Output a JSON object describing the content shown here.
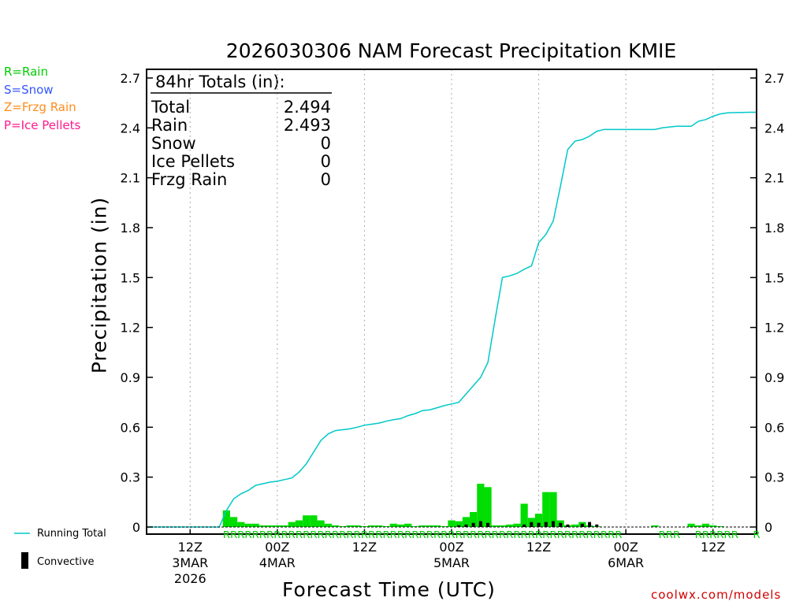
{
  "legend": [
    {
      "label": "R=Rain",
      "color": "#00cc00"
    },
    {
      "label": "S=Snow",
      "color": "#3355ff"
    },
    {
      "label": "Z=Frzg Rain",
      "color": "#ff8c1a"
    },
    {
      "label": "P=Ice Pellets",
      "color": "#ff1a8c"
    }
  ],
  "totals": {
    "heading": "84hr Totals (in):",
    "rows": [
      {
        "label": "Total",
        "value": "2.494"
      },
      {
        "label": "Rain",
        "value": "2.493"
      },
      {
        "label": "Snow",
        "value": "0"
      },
      {
        "label": "Ice Pellets",
        "value": "0"
      },
      {
        "label": "Frzg Rain",
        "value": "0"
      }
    ]
  },
  "bottom_legend": {
    "running_total": "Running Total",
    "convective": "Convective"
  },
  "credit": "coolwx.com/models",
  "colors": {
    "running_total": "#00c8c8",
    "precip_bar": "#00dd00",
    "convective_bar": "#000000"
  },
  "chart_data": {
    "type": "bar",
    "title": "2026030306 NAM Forecast Precipitation KMIE",
    "xlabel": "Forecast Time (UTC)",
    "ylabel": "Precipitation (in)",
    "ylim": [
      0,
      2.7
    ],
    "yticks": [
      0,
      0.3,
      0.6,
      0.9,
      1.2,
      1.5,
      1.8,
      2.1,
      2.4,
      2.7
    ],
    "ytick_labels": [
      "0",
      "0.3",
      "0.6",
      "0.9",
      "1.2",
      "1.5",
      "1.8",
      "2.1",
      "2.4",
      "2.7"
    ],
    "x_unit": "forecast hour",
    "xlim": [
      0,
      84
    ],
    "xticks": [
      {
        "hour": 6,
        "label": "12Z",
        "date": "3MAR",
        "year": "2026"
      },
      {
        "hour": 18,
        "label": "00Z",
        "date": "4MAR",
        "year": ""
      },
      {
        "hour": 30,
        "label": "12Z",
        "date": "",
        "year": ""
      },
      {
        "hour": 42,
        "label": "00Z",
        "date": "5MAR",
        "year": ""
      },
      {
        "hour": 54,
        "label": "12Z",
        "date": "",
        "year": ""
      },
      {
        "hour": 66,
        "label": "00Z",
        "date": "6MAR",
        "year": ""
      },
      {
        "hour": 78,
        "label": "12Z",
        "date": "",
        "year": ""
      }
    ],
    "grid": "dotted vertical at 00Z/12Z",
    "series": [
      {
        "name": "Precipitation per hour",
        "kind": "bar",
        "x": [
          11,
          12,
          13,
          14,
          15,
          16,
          17,
          18,
          19,
          20,
          21,
          22,
          23,
          24,
          25,
          26,
          27,
          28,
          29,
          30,
          31,
          32,
          33,
          34,
          35,
          36,
          37,
          38,
          39,
          40,
          41,
          42,
          43,
          44,
          45,
          46,
          47,
          48,
          49,
          50,
          51,
          52,
          53,
          54,
          55,
          56,
          57,
          58,
          59,
          60,
          61,
          62,
          63,
          64,
          65,
          66,
          67,
          68,
          69,
          70,
          71,
          72,
          73,
          74,
          75,
          76,
          77,
          78,
          79,
          80,
          81,
          82,
          83
        ],
        "values": [
          0.1,
          0.06,
          0.03,
          0.02,
          0.02,
          0.01,
          0.01,
          0.01,
          0.01,
          0.03,
          0.04,
          0.07,
          0.07,
          0.04,
          0.02,
          0.01,
          0.005,
          0.01,
          0.01,
          0.005,
          0.01,
          0.01,
          0.005,
          0.02,
          0.015,
          0.02,
          0.005,
          0.01,
          0.01,
          0.01,
          0.005,
          0.04,
          0.035,
          0.06,
          0.09,
          0.26,
          0.24,
          0.01,
          0.01,
          0.015,
          0.02,
          0.14,
          0.055,
          0.08,
          0.21,
          0.21,
          0.04,
          0.01,
          0.015,
          0.03,
          0.01,
          0.005,
          0,
          0,
          0,
          0,
          0,
          0,
          0,
          0.01,
          0,
          0,
          0,
          0,
          0.02,
          0.01,
          0.02,
          0.01,
          0.005,
          0,
          0,
          0,
          0
        ]
      },
      {
        "name": "Convective",
        "kind": "bar",
        "x": [
          43,
          44,
          45,
          46,
          47,
          52,
          53,
          54,
          55,
          56,
          57,
          58,
          60,
          61,
          62
        ],
        "values": [
          0.01,
          0.015,
          0.025,
          0.035,
          0.025,
          0.015,
          0.03,
          0.025,
          0.03,
          0.035,
          0.025,
          0.015,
          0.02,
          0.03,
          0.015
        ]
      },
      {
        "name": "Running Total",
        "kind": "line",
        "x": [
          0,
          10,
          11,
          12,
          13,
          14,
          15,
          16,
          17,
          18,
          19,
          20,
          21,
          22,
          23,
          24,
          25,
          26,
          27,
          28,
          29,
          30,
          31,
          32,
          33,
          34,
          35,
          36,
          37,
          38,
          39,
          40,
          41,
          42,
          43,
          44,
          45,
          46,
          47,
          48,
          49,
          50,
          51,
          52,
          53,
          54,
          55,
          56,
          57,
          58,
          59,
          60,
          61,
          62,
          63,
          64,
          65,
          66,
          67,
          68,
          69,
          70,
          71,
          72,
          73,
          74,
          75,
          76,
          77,
          78,
          79,
          80,
          81,
          82,
          83,
          84
        ],
        "values": [
          0,
          0,
          0.1,
          0.17,
          0.2,
          0.22,
          0.25,
          0.26,
          0.27,
          0.275,
          0.285,
          0.295,
          0.33,
          0.38,
          0.45,
          0.52,
          0.56,
          0.58,
          0.585,
          0.59,
          0.6,
          0.612,
          0.618,
          0.625,
          0.636,
          0.645,
          0.652,
          0.67,
          0.682,
          0.7,
          0.705,
          0.717,
          0.73,
          0.74,
          0.75,
          0.8,
          0.85,
          0.9,
          0.99,
          1.25,
          1.5,
          1.51,
          1.525,
          1.55,
          1.57,
          1.71,
          1.76,
          1.84,
          2.05,
          2.27,
          2.32,
          2.33,
          2.35,
          2.38,
          2.39,
          2.39,
          2.39,
          2.39,
          2.39,
          2.39,
          2.39,
          2.39,
          2.4,
          2.405,
          2.41,
          2.41,
          2.41,
          2.44,
          2.45,
          2.47,
          2.484,
          2.49,
          2.492,
          2.493,
          2.494,
          2.494
        ]
      }
    ],
    "type_markers": {
      "text": [
        "RRRRRRRRRRRRRRRRRRRRRRRRRRRRRRRRRRRRRRRRRRRRRRRRRRRRRR",
        "R",
        "RRR",
        "RRRRRR",
        "R"
      ],
      "start_hour": [
        10.5,
        64.5,
        70.5,
        75.5,
        83.5
      ]
    }
  }
}
